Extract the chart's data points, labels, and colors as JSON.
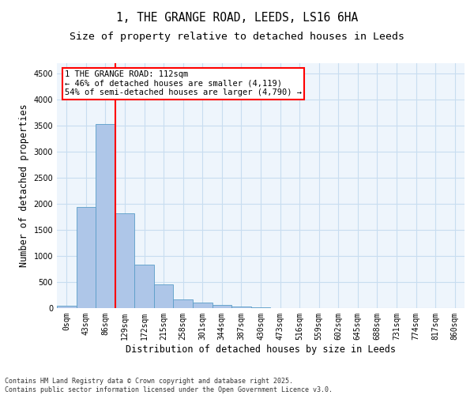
{
  "title_line1": "1, THE GRANGE ROAD, LEEDS, LS16 6HA",
  "title_line2": "Size of property relative to detached houses in Leeds",
  "xlabel": "Distribution of detached houses by size in Leeds",
  "ylabel": "Number of detached properties",
  "bar_labels": [
    "0sqm",
    "43sqm",
    "86sqm",
    "129sqm",
    "172sqm",
    "215sqm",
    "258sqm",
    "301sqm",
    "344sqm",
    "387sqm",
    "430sqm",
    "473sqm",
    "516sqm",
    "559sqm",
    "602sqm",
    "645sqm",
    "688sqm",
    "731sqm",
    "774sqm",
    "817sqm",
    "860sqm"
  ],
  "bar_values": [
    50,
    1940,
    3540,
    1820,
    840,
    450,
    170,
    100,
    60,
    30,
    10,
    5,
    2,
    1,
    0,
    0,
    0,
    0,
    0,
    0,
    0
  ],
  "bar_color": "#aec6e8",
  "bar_edge_color": "#5a9dc8",
  "vline_color": "red",
  "vline_x_index": 2.5,
  "annotation_text": "1 THE GRANGE ROAD: 112sqm\n← 46% of detached houses are smaller (4,119)\n54% of semi-detached houses are larger (4,790) →",
  "annotation_box_color": "white",
  "annotation_box_edge_color": "red",
  "ylim": [
    0,
    4700
  ],
  "yticks": [
    0,
    500,
    1000,
    1500,
    2000,
    2500,
    3000,
    3500,
    4000,
    4500
  ],
  "bg_color": "#eef5fc",
  "grid_color": "#c8ddf0",
  "footer": "Contains HM Land Registry data © Crown copyright and database right 2025.\nContains public sector information licensed under the Open Government Licence v3.0.",
  "title_fontsize": 10.5,
  "subtitle_fontsize": 9.5,
  "axis_label_fontsize": 8.5,
  "tick_fontsize": 7,
  "annotation_fontsize": 7.5,
  "footer_fontsize": 6
}
